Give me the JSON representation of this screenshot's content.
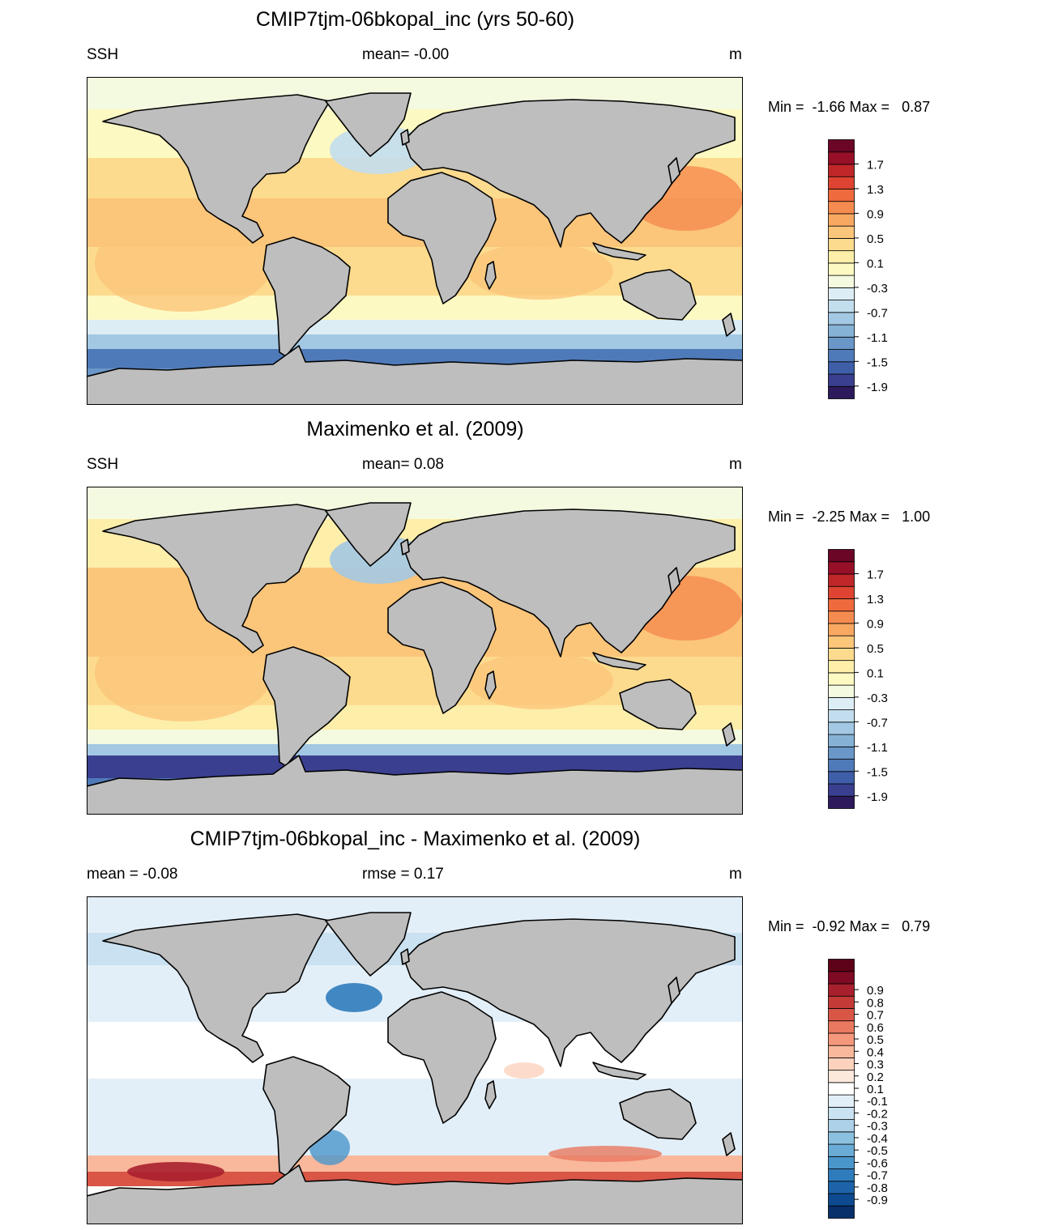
{
  "colors": {
    "land": "#bebebe",
    "coast": "#000000",
    "ssh_scale": [
      "#2c1a5c",
      "#3a3f8f",
      "#3f5ea8",
      "#4f7ab9",
      "#6a97c8",
      "#86b2d6",
      "#a3c8e3",
      "#c2dded",
      "#dcedf5",
      "#f4fae0",
      "#fdf9c2",
      "#fdeeaa",
      "#fddb8e",
      "#fbc57a",
      "#f9a862",
      "#f68b4f",
      "#ef6a3d",
      "#de4431",
      "#c02729",
      "#980f28",
      "#6b0626"
    ],
    "diff_scale": [
      "#08306b",
      "#0d4a8f",
      "#1d63a9",
      "#2f7cbc",
      "#4a96cb",
      "#6aacd6",
      "#8cc0df",
      "#acd1e8",
      "#c9e1f1",
      "#e3eff8",
      "#ffffff",
      "#fde8dc",
      "#fcd2bd",
      "#f9b79b",
      "#f4987b",
      "#e8785f",
      "#d95647",
      "#c43a37",
      "#a8202d",
      "#7e0a24",
      "#5e0217"
    ]
  },
  "panels": [
    {
      "title": "CMIP7tjm-06bkopal_inc (yrs 50-60)",
      "left_label": "SSH",
      "mid_label": "mean=  -0.00",
      "unit": "m",
      "minmax": "Min =  -1.66 Max =   0.87",
      "scale": "ssh",
      "ticks": [
        "1.7",
        "1.3",
        "0.9",
        "0.5",
        "0.1",
        "-0.3",
        "-0.7",
        "-1.1",
        "-1.5",
        "-1.9"
      ]
    },
    {
      "title": "Maximenko et al. (2009)",
      "left_label": "SSH",
      "mid_label": "mean=   0.08",
      "unit": "m",
      "minmax": "Min =  -2.25 Max =   1.00",
      "scale": "ssh",
      "ticks": [
        "1.7",
        "1.3",
        "0.9",
        "0.5",
        "0.1",
        "-0.3",
        "-0.7",
        "-1.1",
        "-1.5",
        "-1.9"
      ]
    },
    {
      "title": "CMIP7tjm-06bkopal_inc - Maximenko et al. (2009)",
      "left_label": "mean =  -0.08",
      "mid_label": "rmse =   0.17",
      "unit": "m",
      "minmax": "Min =  -0.92 Max =   0.79",
      "scale": "diff",
      "ticks": [
        "0.9",
        "0.8",
        "0.7",
        "0.6",
        "0.5",
        "0.4",
        "0.3",
        "0.2",
        "0.1",
        "-0.1",
        "-0.2",
        "-0.3",
        "-0.4",
        "-0.5",
        "-0.6",
        "-0.7",
        "-0.8",
        "-0.9"
      ]
    }
  ]
}
